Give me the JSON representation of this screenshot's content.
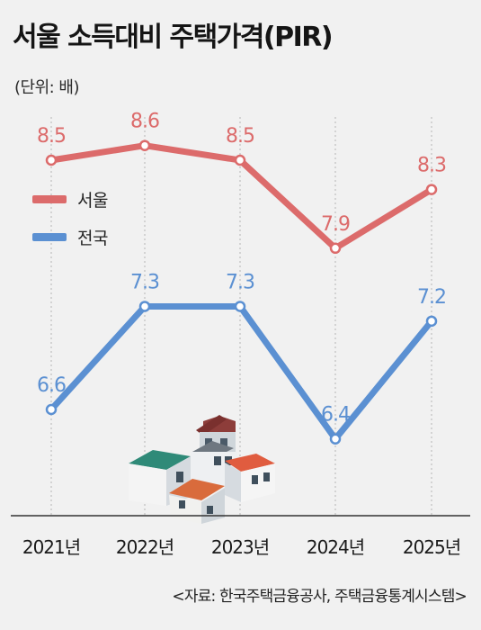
{
  "title": "서울 소득대비 주택가격(PIR)",
  "unit": "(단위: 배)",
  "source": "<자료: 한국주택금융공사, 주택금융통계시스템>",
  "colors": {
    "seoul": "#dc6b6b",
    "national": "#5b90d2",
    "axis": "#333333",
    "grid": "#b5b5b5"
  },
  "chart_data": {
    "type": "line",
    "categories": [
      "2021년",
      "2022년",
      "2023년",
      "2024년",
      "2025년"
    ],
    "series": [
      {
        "name": "서울",
        "values": [
          8.5,
          8.6,
          8.5,
          7.9,
          8.3
        ],
        "labels": [
          "8.5",
          "8.6",
          "8.5",
          "7.9",
          "8.3"
        ]
      },
      {
        "name": "전국",
        "values": [
          6.6,
          7.3,
          7.3,
          6.4,
          7.2
        ],
        "labels": [
          "6.6",
          "7.3",
          "7.3",
          "6.4",
          "7.2"
        ]
      }
    ],
    "legend_position": "left",
    "grid": "vertical-dotted"
  }
}
